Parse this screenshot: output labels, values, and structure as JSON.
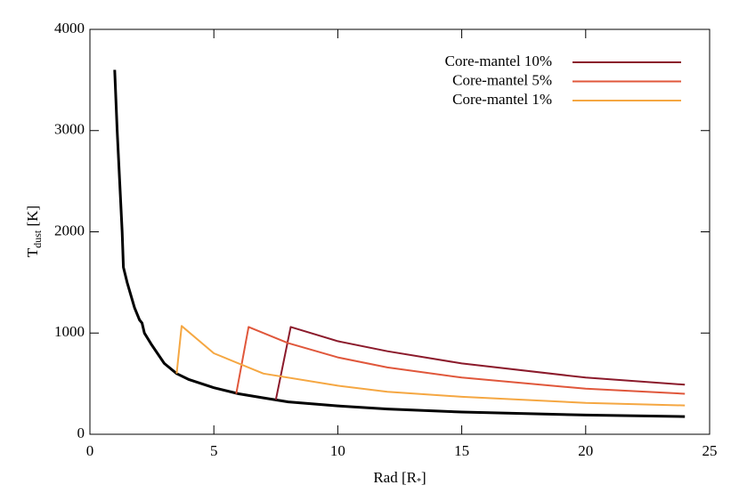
{
  "chart_data": {
    "type": "line",
    "xlabel": "Rad [R",
    "xlabel_sub": "*",
    "xlabel_end": "]",
    "ylabel": "T",
    "ylabel_sub": "dust",
    "ylabel_end": " [K]",
    "xlim": [
      0,
      25
    ],
    "xticks": [
      0,
      5,
      10,
      15,
      20,
      25
    ],
    "ylim": [
      0,
      4000
    ],
    "yticks": [
      0,
      1000,
      2000,
      3000,
      4000
    ],
    "legend": "upper right",
    "series": [
      {
        "color": "#000000",
        "width": 3,
        "x": [
          1.0,
          1.1,
          1.2,
          1.3,
          1.35,
          1.5,
          1.8,
          2.0,
          2.1,
          2.2,
          2.5,
          3.0,
          3.5,
          4,
          5,
          6,
          7,
          8,
          10,
          12,
          15,
          20,
          24
        ],
        "values": [
          3600,
          3000,
          2500,
          2000,
          1650,
          1500,
          1250,
          1130,
          1100,
          1000,
          880,
          700,
          600,
          540,
          460,
          400,
          360,
          320,
          280,
          250,
          220,
          190,
          175
        ]
      },
      {
        "name": "Core-mantel 10%",
        "color": "#8b1a2b",
        "width": 2,
        "x": [
          7.5,
          8.1,
          10,
          12,
          15,
          20,
          24
        ],
        "values": [
          340,
          1060,
          920,
          820,
          700,
          560,
          490
        ]
      },
      {
        "name": "Core-mantel 5%",
        "color": "#e0573b",
        "width": 2,
        "x": [
          5.9,
          6.4,
          8,
          10,
          12,
          15,
          20,
          24
        ],
        "values": [
          400,
          1060,
          900,
          760,
          660,
          560,
          450,
          400
        ]
      },
      {
        "name": "Core-mantel 1%",
        "color": "#f5a742",
        "width": 2,
        "x": [
          3.5,
          3.7,
          5,
          7,
          10,
          12,
          15,
          20,
          24
        ],
        "values": [
          600,
          1070,
          800,
          600,
          480,
          420,
          370,
          310,
          285
        ]
      }
    ]
  }
}
